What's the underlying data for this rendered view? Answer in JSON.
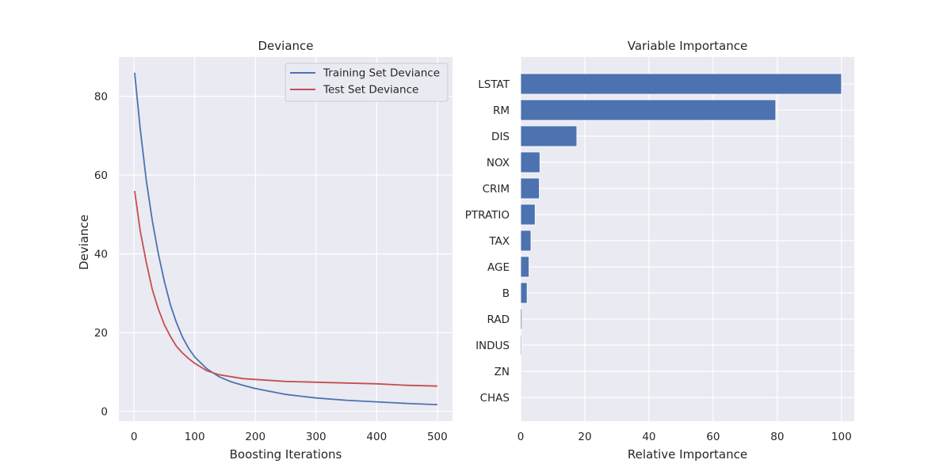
{
  "chart_data": [
    {
      "type": "line",
      "title": "Deviance",
      "xlabel": "Boosting Iterations",
      "ylabel": "Deviance",
      "xlim": [
        -25,
        525
      ],
      "ylim": [
        -2.5,
        90
      ],
      "xticks": [
        0,
        100,
        200,
        300,
        400,
        500
      ],
      "yticks": [
        0,
        20,
        40,
        60,
        80
      ],
      "grid": true,
      "legend": "upper-right",
      "series": [
        {
          "name": "Training Set Deviance",
          "color": "#4c72b0",
          "x": [
            1,
            10,
            20,
            30,
            40,
            50,
            60,
            70,
            80,
            90,
            100,
            120,
            140,
            160,
            180,
            200,
            250,
            300,
            350,
            400,
            450,
            500
          ],
          "y": [
            86,
            72,
            59,
            48.5,
            40,
            33,
            27,
            22.5,
            18.8,
            16,
            13.8,
            10.8,
            8.8,
            7.5,
            6.6,
            5.8,
            4.3,
            3.4,
            2.8,
            2.4,
            2.0,
            1.7
          ]
        },
        {
          "name": "Test Set Deviance",
          "color": "#c44e52",
          "x": [
            1,
            10,
            20,
            30,
            40,
            50,
            60,
            70,
            80,
            90,
            100,
            120,
            140,
            160,
            180,
            200,
            250,
            300,
            350,
            400,
            450,
            500
          ],
          "y": [
            56,
            46,
            38,
            31,
            26,
            22,
            19,
            16.5,
            14.8,
            13.4,
            12.2,
            10.3,
            9.3,
            8.8,
            8.3,
            8.1,
            7.6,
            7.4,
            7.2,
            7.0,
            6.6,
            6.4
          ]
        }
      ]
    },
    {
      "type": "bar",
      "orientation": "horizontal",
      "title": "Variable Importance",
      "xlabel": "Relative Importance",
      "ylabel": "",
      "xlim": [
        0,
        104
      ],
      "xticks": [
        0,
        20,
        40,
        60,
        80,
        100
      ],
      "grid": true,
      "color": "#4c72b0",
      "categories": [
        "LSTAT",
        "RM",
        "DIS",
        "NOX",
        "CRIM",
        "PTRATIO",
        "TAX",
        "AGE",
        "B",
        "RAD",
        "INDUS",
        "ZN",
        "CHAS"
      ],
      "values": [
        100,
        79.5,
        17.5,
        6,
        5.8,
        4.5,
        3.2,
        2.6,
        2.0,
        0.4,
        0.3,
        0.05,
        0.02
      ]
    }
  ]
}
